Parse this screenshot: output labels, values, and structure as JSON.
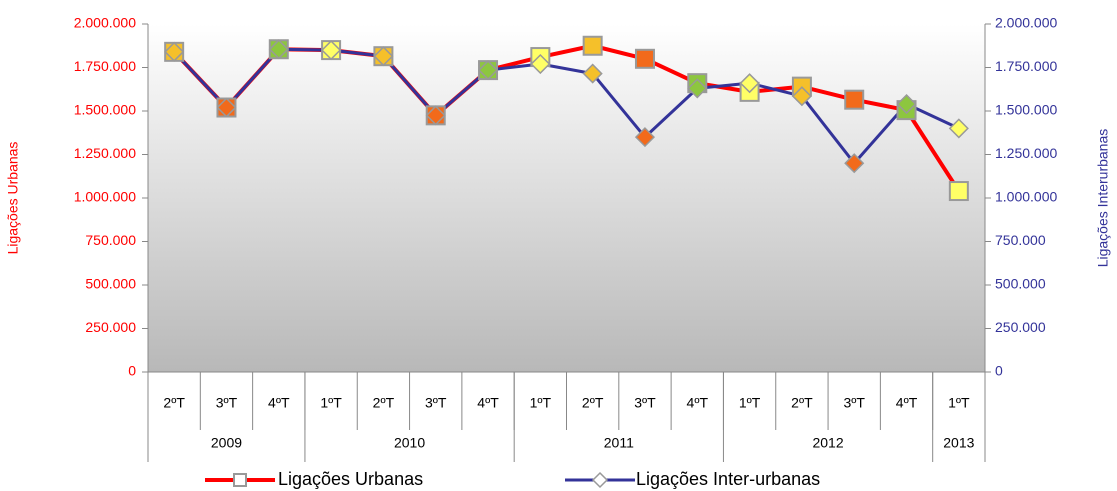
{
  "chart_data": {
    "type": "line",
    "categories": [
      "2ºT",
      "3ºT",
      "4ºT",
      "1ºT",
      "2ºT",
      "3ºT",
      "4ºT",
      "1ºT",
      "2ºT",
      "3ºT",
      "4ºT",
      "1ºT",
      "2ºT",
      "3ºT",
      "4ºT",
      "1ºT"
    ],
    "category_groups": [
      {
        "label": "2009",
        "span": 3
      },
      {
        "label": "2010",
        "span": 4
      },
      {
        "label": "2011",
        "span": 4
      },
      {
        "label": "2012",
        "span": 4
      },
      {
        "label": "2013",
        "span": 1
      }
    ],
    "y_label": "Ligações Urbanas",
    "y2_label": "Ligações Interurbanas",
    "ylim": [
      0,
      2000000
    ],
    "yticks": [
      0,
      {
        "value": 250000,
        "label": "250.000"
      },
      {
        "value": 500000,
        "label": "500.000"
      },
      {
        "value": 750000,
        "label": "750.000"
      },
      {
        "value": 1000000,
        "label": "1.000.000"
      },
      {
        "value": 1250000,
        "label": "1.250.000"
      },
      {
        "value": 1500000,
        "label": "1.500.000"
      },
      {
        "value": 1750000,
        "label": "1.750.000"
      },
      {
        "value": 2000000,
        "label": "2.000.000"
      }
    ],
    "y2lim": [
      0,
      2000000
    ],
    "y2ticks": [
      0,
      {
        "value": 250000,
        "label": "250.000"
      },
      {
        "value": 500000,
        "label": "500.000"
      },
      {
        "value": 750000,
        "label": "750.000"
      },
      {
        "value": 1000000,
        "label": "1.000.000"
      },
      {
        "value": 1250000,
        "label": "1.250.000"
      },
      {
        "value": 1500000,
        "label": "1.500.000"
      },
      {
        "value": 1750000,
        "label": "1.750.000"
      },
      {
        "value": 2000000,
        "label": "2.000.000"
      }
    ],
    "legend": "bottom",
    "series": [
      {
        "name": "Ligações Urbanas",
        "color": "#ff0000",
        "marker": "square",
        "values": [
          1840000,
          1520000,
          1855000,
          1850000,
          1815000,
          1475000,
          1735000,
          1810000,
          1875000,
          1800000,
          1660000,
          1610000,
          1640000,
          1565000,
          1505000,
          1040000
        ],
        "marker_colors": [
          "#f5c02a",
          "#f26a1b",
          "#8dc63f",
          "#ffff66",
          "#f5c02a",
          "#f26a1b",
          "#8dc63f",
          "#ffff66",
          "#f5c02a",
          "#f26a1b",
          "#8dc63f",
          "#ffff66",
          "#f5c02a",
          "#f26a1b",
          "#8dc63f",
          "#ffff66"
        ]
      },
      {
        "name": "Ligações Inter-urbanas",
        "color": "#333399",
        "marker": "diamond",
        "axis": "y2",
        "values": [
          1840000,
          1520000,
          1855000,
          1850000,
          1815000,
          1475000,
          1735000,
          1770000,
          1715000,
          1350000,
          1630000,
          1660000,
          1585000,
          1200000,
          1540000,
          1400000
        ],
        "marker_colors": [
          "#f5c02a",
          "#f26a1b",
          "#8dc63f",
          "#ffff66",
          "#f5c02a",
          "#f26a1b",
          "#8dc63f",
          "#ffff66",
          "#f5c02a",
          "#f26a1b",
          "#8dc63f",
          "#ffff66",
          "#f5c02a",
          "#f26a1b",
          "#8dc63f",
          "#ffff66"
        ]
      }
    ]
  }
}
